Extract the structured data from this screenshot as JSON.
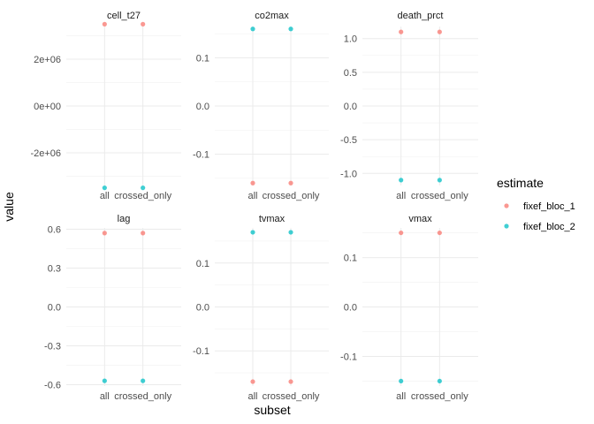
{
  "chart_data": {
    "type": "scatter",
    "xlabel": "subset",
    "ylabel": "value",
    "categories": [
      "all",
      "crossed_only"
    ],
    "legend": {
      "title": "estimate",
      "position": "right",
      "entries": [
        {
          "name": "fixef_bloc_1",
          "color": "#F8766D"
        },
        {
          "name": "fixef_bloc_2",
          "color": "#00BFC4"
        }
      ]
    },
    "grid": true,
    "panels": [
      {
        "title": "cell_t27",
        "ylim": [
          -3400000,
          3400000
        ],
        "yticks": [
          -2000000,
          0,
          2000000
        ],
        "ytick_labels": [
          "-2e+06",
          "0e+00",
          "2e+06"
        ],
        "series": [
          {
            "name": "fixef_bloc_1",
            "values": [
              3500000,
              3500000
            ]
          },
          {
            "name": "fixef_bloc_2",
            "values": [
              -3500000,
              -3500000
            ]
          }
        ]
      },
      {
        "title": "co2max",
        "ylim": [
          -0.165,
          0.165
        ],
        "yticks": [
          -0.1,
          0.0,
          0.1
        ],
        "ytick_labels": [
          "-0.1",
          "0.0",
          "0.1"
        ],
        "series": [
          {
            "name": "fixef_bloc_1",
            "values": [
              -0.16,
              -0.16
            ]
          },
          {
            "name": "fixef_bloc_2",
            "values": [
              0.16,
              0.16
            ]
          }
        ]
      },
      {
        "title": "death_prct",
        "ylim": [
          -1.18,
          1.18
        ],
        "yticks": [
          -1.0,
          -0.5,
          0.0,
          0.5,
          1.0
        ],
        "ytick_labels": [
          "-1.0",
          "-0.5",
          "0.0",
          "0.5",
          "1.0"
        ],
        "series": [
          {
            "name": "fixef_bloc_1",
            "values": [
              1.1,
              1.1
            ]
          },
          {
            "name": "fixef_bloc_2",
            "values": [
              -1.1,
              -1.1
            ]
          }
        ]
      },
      {
        "title": "lag",
        "ylim": [
          -0.61,
          0.61
        ],
        "yticks": [
          -0.6,
          -0.3,
          0.0,
          0.3,
          0.6
        ],
        "ytick_labels": [
          "-0.6",
          "-0.3",
          "0.0",
          "0.3",
          "0.6"
        ],
        "series": [
          {
            "name": "fixef_bloc_1",
            "values": [
              0.57,
              0.57
            ]
          },
          {
            "name": "fixef_bloc_2",
            "values": [
              -0.57,
              -0.57
            ]
          }
        ]
      },
      {
        "title": "tvmax",
        "ylim": [
          -0.18,
          0.18
        ],
        "yticks": [
          -0.1,
          0.0,
          0.1
        ],
        "ytick_labels": [
          "-0.1",
          "0.0",
          "0.1"
        ],
        "series": [
          {
            "name": "fixef_bloc_1",
            "values": [
              -0.17,
              -0.17
            ]
          },
          {
            "name": "fixef_bloc_2",
            "values": [
              0.17,
              0.17
            ]
          }
        ]
      },
      {
        "title": "vmax",
        "ylim": [
          -0.16,
          0.16
        ],
        "yticks": [
          -0.1,
          0.0,
          0.1
        ],
        "ytick_labels": [
          "-0.1",
          "0.0",
          "0.1"
        ],
        "series": [
          {
            "name": "fixef_bloc_1",
            "values": [
              0.15,
              0.15
            ]
          },
          {
            "name": "fixef_bloc_2",
            "values": [
              -0.15,
              -0.15
            ]
          }
        ]
      }
    ]
  }
}
